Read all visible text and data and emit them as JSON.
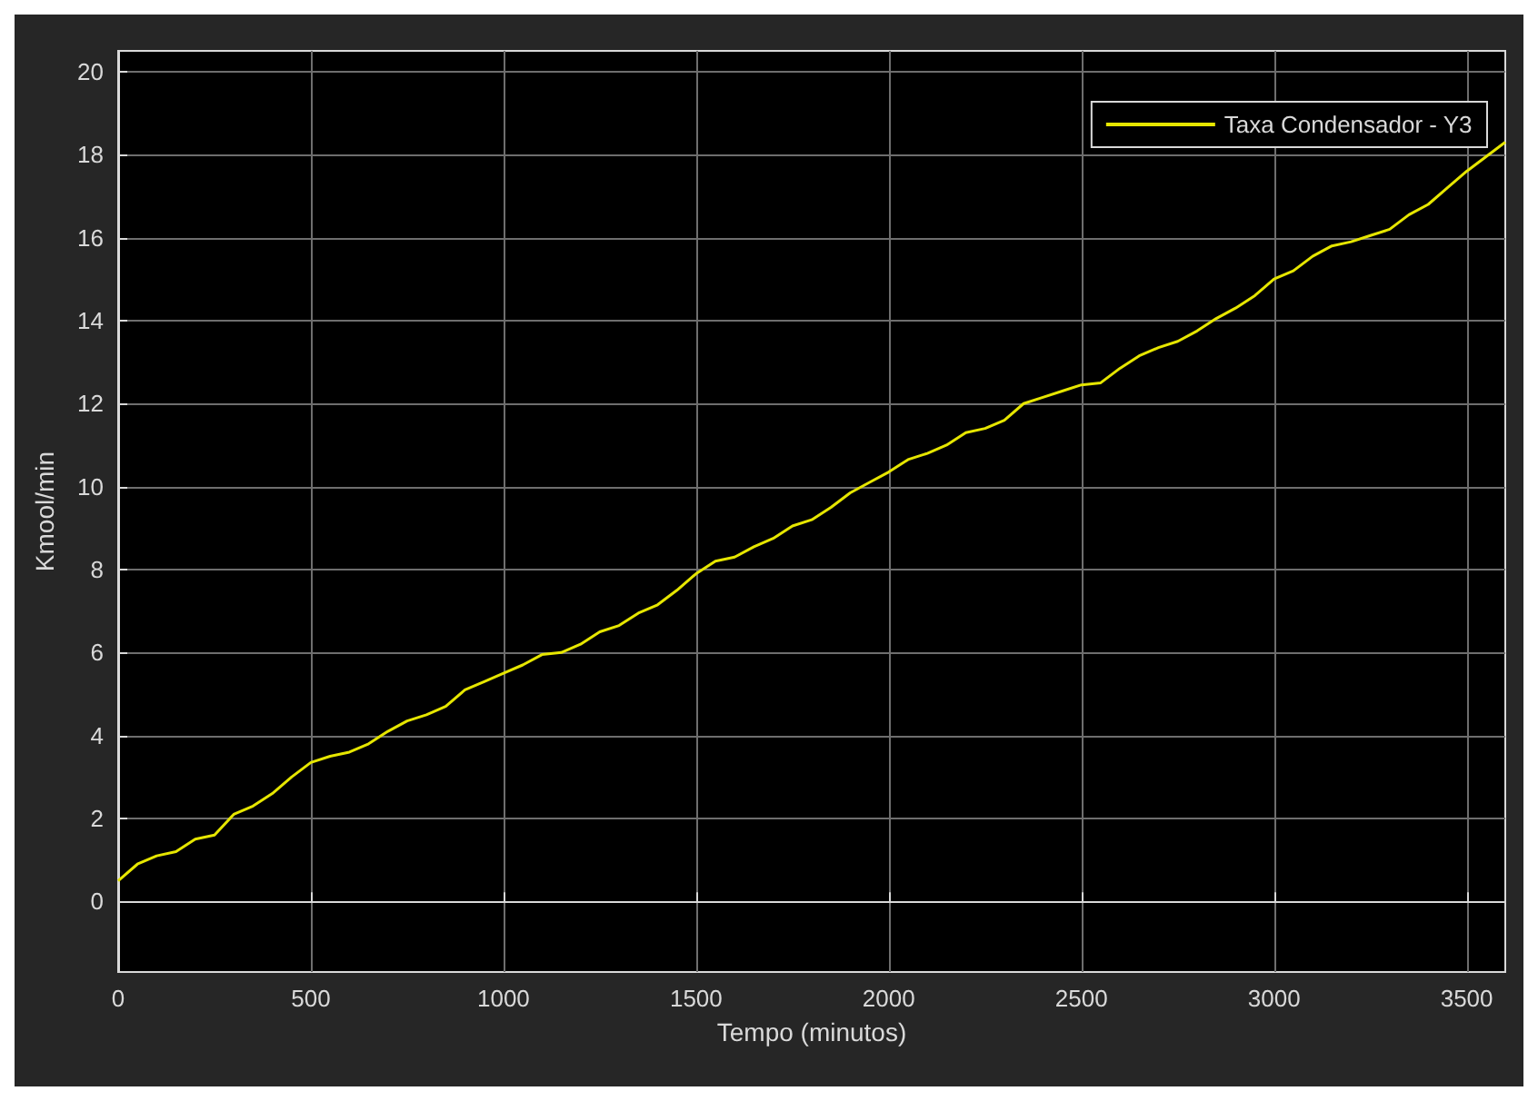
{
  "chart_data": {
    "type": "line",
    "xlabel": "Tempo (minutos)",
    "ylabel": "Kmool/min",
    "x": [
      0,
      50,
      100,
      150,
      200,
      250,
      300,
      350,
      400,
      450,
      500,
      550,
      600,
      650,
      700,
      750,
      800,
      850,
      900,
      950,
      1000,
      1050,
      1100,
      1150,
      1200,
      1250,
      1300,
      1350,
      1400,
      1450,
      1500,
      1550,
      1600,
      1650,
      1700,
      1750,
      1800,
      1850,
      1900,
      1950,
      2000,
      2050,
      2100,
      2150,
      2200,
      2250,
      2300,
      2350,
      2400,
      2450,
      2500,
      2550,
      2600,
      2650,
      2700,
      2750,
      2800,
      2850,
      2900,
      2950,
      3000,
      3050,
      3100,
      3150,
      3200,
      3250,
      3300,
      3350,
      3400,
      3450,
      3500,
      3550,
      3600
    ],
    "series": [
      {
        "name": "Taxa Condensador - Y3",
        "color": "#e6e600",
        "values": [
          0.5,
          0.9,
          1.1,
          1.2,
          1.5,
          1.6,
          2.1,
          2.3,
          2.6,
          3.0,
          3.35,
          3.5,
          3.6,
          3.8,
          4.1,
          4.35,
          4.5,
          4.7,
          5.1,
          5.3,
          5.5,
          5.7,
          5.95,
          6.0,
          6.2,
          6.5,
          6.65,
          6.95,
          7.15,
          7.5,
          7.9,
          8.2,
          8.3,
          8.55,
          8.75,
          9.05,
          9.2,
          9.5,
          9.85,
          10.1,
          10.35,
          10.65,
          10.8,
          11.0,
          11.3,
          11.4,
          11.6,
          12.0,
          12.15,
          12.3,
          12.45,
          12.5,
          12.85,
          13.15,
          13.35,
          13.5,
          13.75,
          14.05,
          14.3,
          14.6,
          15.0,
          15.2,
          15.55,
          15.8,
          15.9,
          16.05,
          16.2,
          16.55,
          16.8,
          17.2,
          17.6,
          17.95,
          18.3
        ]
      }
    ],
    "xlim": [
      0,
      3600
    ],
    "xticks": [
      0,
      500,
      1000,
      1500,
      2000,
      2500,
      3000,
      3500
    ],
    "ylim": [
      -1.7,
      20.5
    ],
    "yticks": [
      0,
      2,
      4,
      6,
      8,
      10,
      12,
      14,
      16,
      18,
      20
    ],
    "grid": true,
    "legend": "top right",
    "marker": "none",
    "line_style": "solid"
  }
}
